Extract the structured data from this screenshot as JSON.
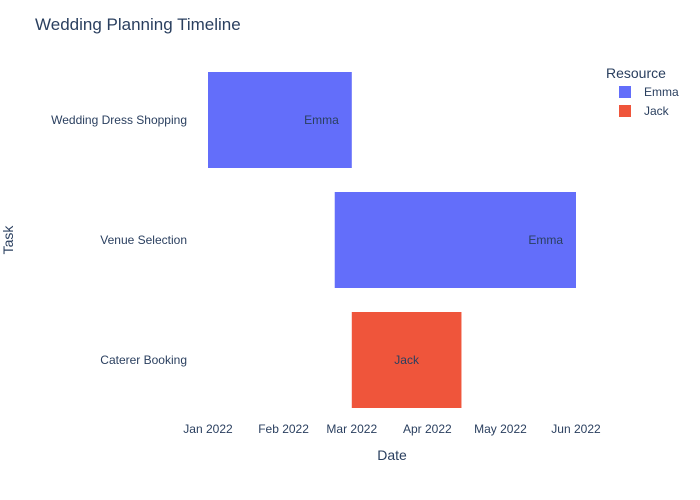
{
  "chart_data": {
    "type": "bar",
    "subtype": "gantt",
    "title": "Wedding Planning Timeline",
    "xlabel": "Date",
    "ylabel": "Task",
    "x_ticks": [
      "Jan 2022",
      "Feb 2022",
      "Mar 2022",
      "Apr 2022",
      "May 2022",
      "Jun 2022"
    ],
    "x_range": [
      "2022-01-01",
      "2022-06-01"
    ],
    "tasks": [
      {
        "task": "Wedding Dress Shopping",
        "start": "2022-01-01",
        "end": "2022-03-01",
        "resource": "Emma"
      },
      {
        "task": "Venue Selection",
        "start": "2022-02-22",
        "end": "2022-06-01",
        "resource": "Emma"
      },
      {
        "task": "Caterer Booking",
        "start": "2022-03-01",
        "end": "2022-04-15",
        "resource": "Jack"
      }
    ],
    "legend": {
      "title": "Resource",
      "placement": "top-right",
      "items": [
        {
          "name": "Emma",
          "color": "#636efa"
        },
        {
          "name": "Jack",
          "color": "#ef553b"
        }
      ]
    },
    "grid": false,
    "background": "#ffffff"
  }
}
